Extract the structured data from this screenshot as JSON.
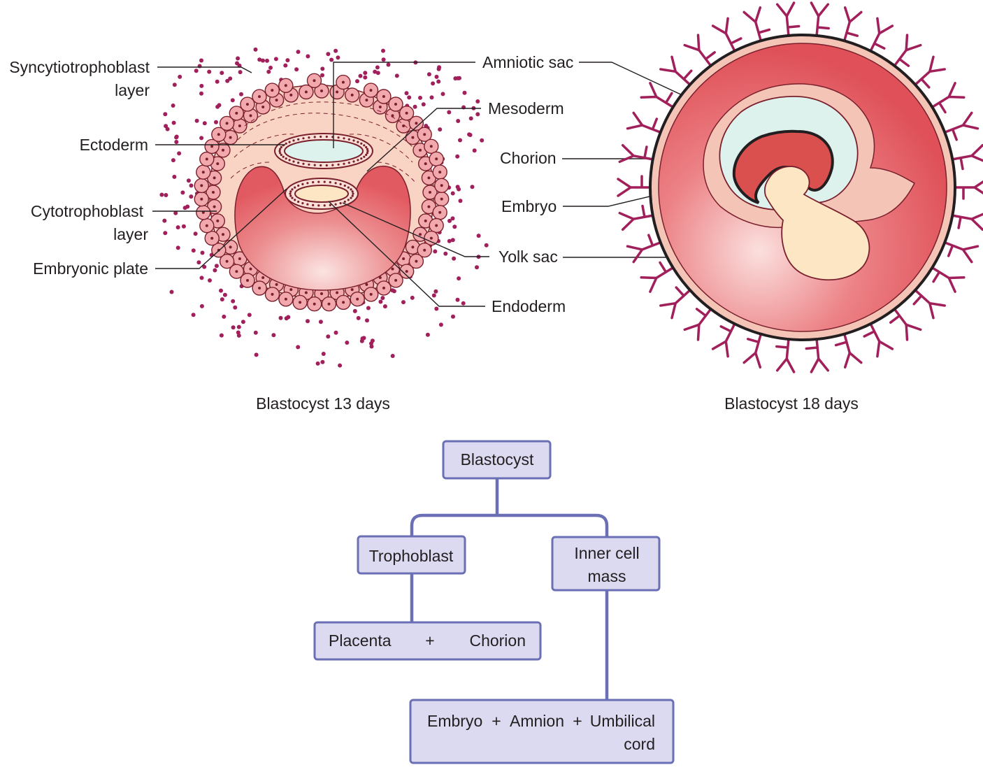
{
  "labels_13": {
    "syncytio_1": "Syncytiotrophoblast",
    "syncytio_2": "layer",
    "ectoderm": "Ectoderm",
    "cyto_1": "Cytotrophoblast",
    "cyto_2": "layer",
    "embryonic_plate": "Embryonic plate",
    "amniotic_sac": "Amniotic sac",
    "mesoderm": "Mesoderm",
    "chorion": "Chorion",
    "embryo": "Embryo",
    "yolk_sac": "Yolk sac",
    "endoderm": "Endoderm"
  },
  "captions": {
    "day13": "Blastocyst 13 days",
    "day18": "Blastocyst 18 days"
  },
  "flowchart": {
    "root": "Blastocyst",
    "trophoblast": "Trophoblast",
    "inner_1": "Inner cell",
    "inner_2": "mass",
    "placenta": "Placenta",
    "plus": "+",
    "chorion": "Chorion",
    "embryo": "Embryo",
    "amnion": "Amnion",
    "umbilical_1": "Umbilical",
    "umbilical_2": "cord"
  },
  "colors": {
    "cell_fill": "#f2a9ad",
    "cell_stroke": "#7a1f2c",
    "dot": "#a11f5a",
    "cavity": "#e8656a",
    "mesoderm_fill": "#f9d3c3",
    "amnion_fill": "#def2ed",
    "yolk_fill": "#fde6c3",
    "villi": "#a11f5a",
    "flow_box": "#dcdaf0",
    "flow_line": "#6b6fb6"
  }
}
